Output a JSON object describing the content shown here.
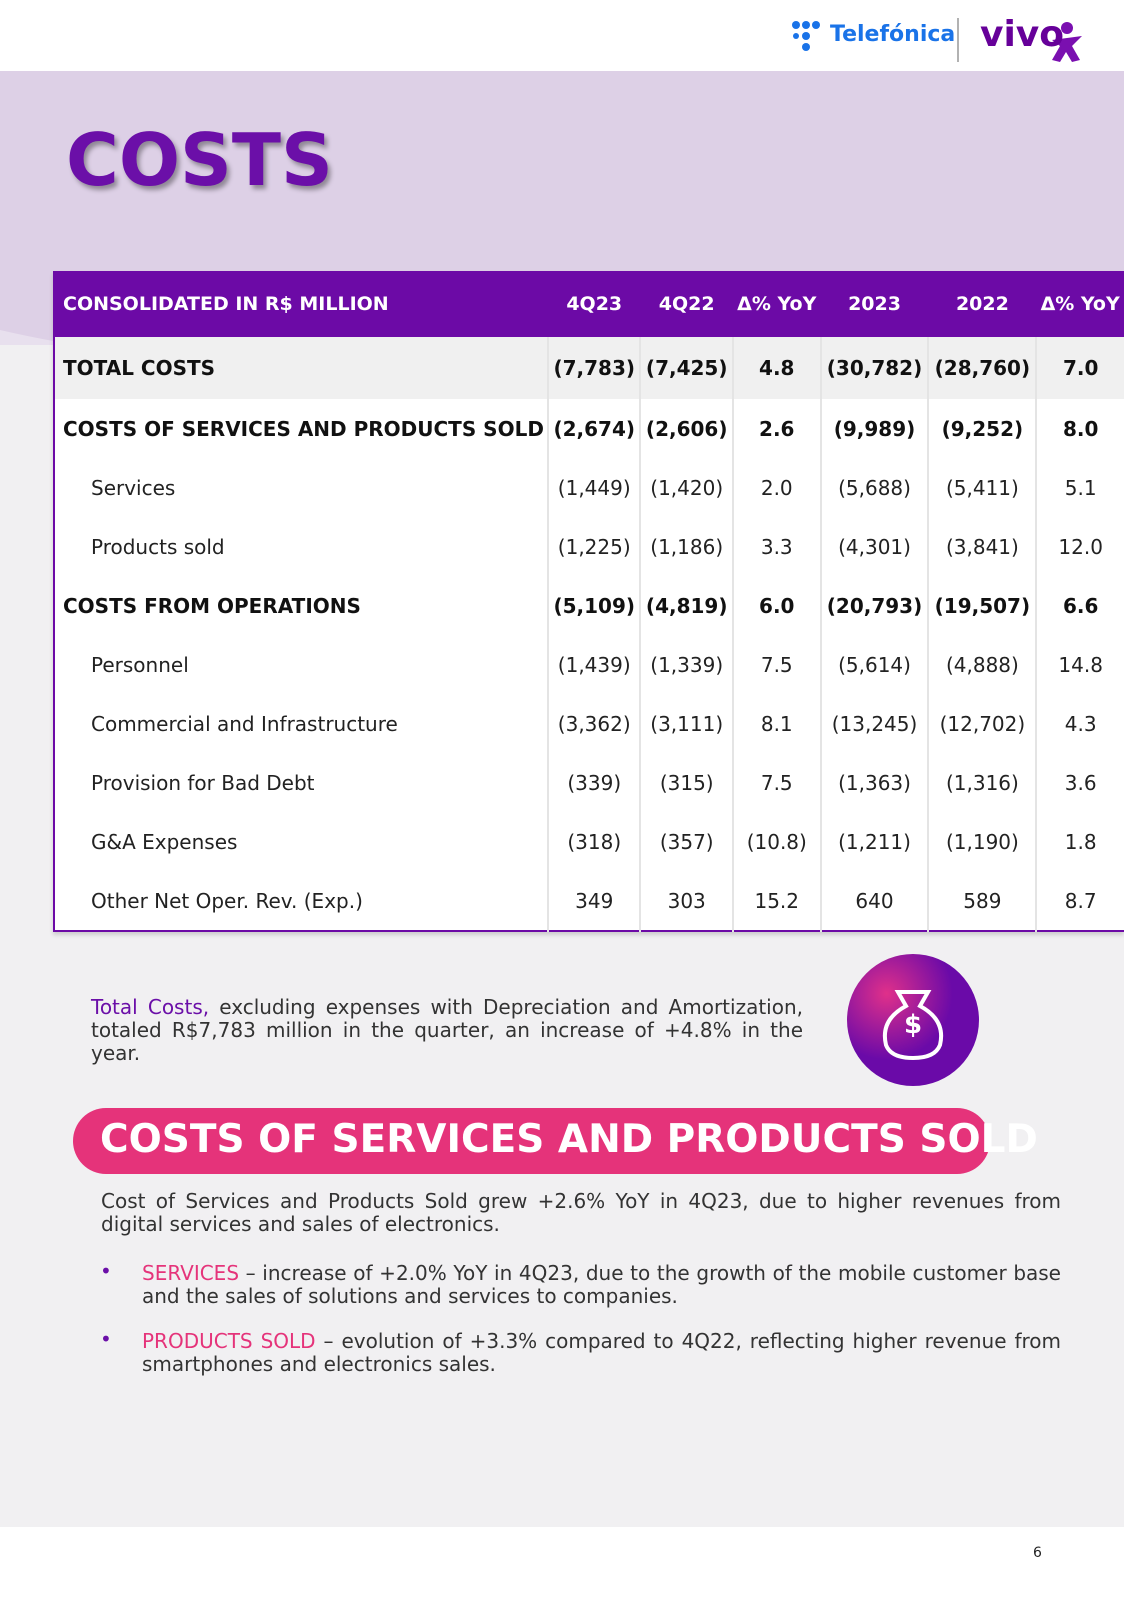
{
  "header": {
    "brand_left": "Telefónica",
    "brand_right": "vivo"
  },
  "title": "COSTS",
  "table": {
    "header": [
      "CONSOLIDATED IN R$ MILLION",
      "4Q23",
      "4Q22",
      "Δ% YoY",
      "2023",
      "2022",
      "Δ% YoY"
    ],
    "rows": [
      {
        "style": "bold",
        "cells": [
          "TOTAL COSTS",
          "(7,783)",
          "(7,425)",
          "4.8",
          "(30,782)",
          "(28,760)",
          "7.0"
        ]
      },
      {
        "style": "bold",
        "cells": [
          "COSTS OF SERVICES AND PRODUCTS SOLD",
          "(2,674)",
          "(2,606)",
          "2.6",
          "(9,989)",
          "(9,252)",
          "8.0"
        ]
      },
      {
        "style": "indent",
        "cells": [
          "Services",
          "(1,449)",
          "(1,420)",
          "2.0",
          "(5,688)",
          "(5,411)",
          "5.1"
        ]
      },
      {
        "style": "indent",
        "cells": [
          "Products sold",
          "(1,225)",
          "(1,186)",
          "3.3",
          "(4,301)",
          "(3,841)",
          "12.0"
        ]
      },
      {
        "style": "bold",
        "cells": [
          "COSTS FROM OPERATIONS",
          "(5,109)",
          "(4,819)",
          "6.0",
          "(20,793)",
          "(19,507)",
          "6.6"
        ]
      },
      {
        "style": "indent",
        "cells": [
          "Personnel",
          "(1,439)",
          "(1,339)",
          "7.5",
          "(5,614)",
          "(4,888)",
          "14.8"
        ]
      },
      {
        "style": "indent",
        "cells": [
          "Commercial and Infrastructure",
          "(3,362)",
          "(3,111)",
          "8.1",
          "(13,245)",
          "(12,702)",
          "4.3"
        ]
      },
      {
        "style": "indent",
        "cells": [
          "Provision for Bad Debt",
          "(339)",
          "(315)",
          "7.5",
          "(1,363)",
          "(1,316)",
          "3.6"
        ]
      },
      {
        "style": "indent",
        "cells": [
          "G&A Expenses",
          "(318)",
          "(357)",
          "(10.8)",
          "(1,211)",
          "(1,190)",
          "1.8"
        ]
      },
      {
        "style": "indent",
        "cells": [
          "Other Net Oper. Rev. (Exp.)",
          "349",
          "303",
          "15.2",
          "640",
          "589",
          "8.7"
        ]
      }
    ]
  },
  "summary": {
    "highlight": "Total Costs,",
    "text": " excluding expenses with Depreciation and Amortization, totaled R$7,783 million in the quarter, an increase of +4.8% in the year."
  },
  "icon_symbol": "$",
  "section": {
    "heading": "COSTS OF SERVICES AND PRODUCTS SOLD",
    "paragraph": "Cost of Services and Products Sold grew +2.6% YoY in 4Q23, due to higher revenues from digital services and sales of electronics.",
    "bullets": [
      {
        "label": "SERVICES",
        "text": " – increase of +2.0% YoY in 4Q23, due to the growth of the mobile customer base and the sales of solutions and services to companies."
      },
      {
        "label": "PRODUCTS SOLD",
        "text": " – evolution of +3.3% compared to 4Q22, reflecting higher revenue from smartphones and electronics sales."
      }
    ]
  },
  "page_number": "6"
}
